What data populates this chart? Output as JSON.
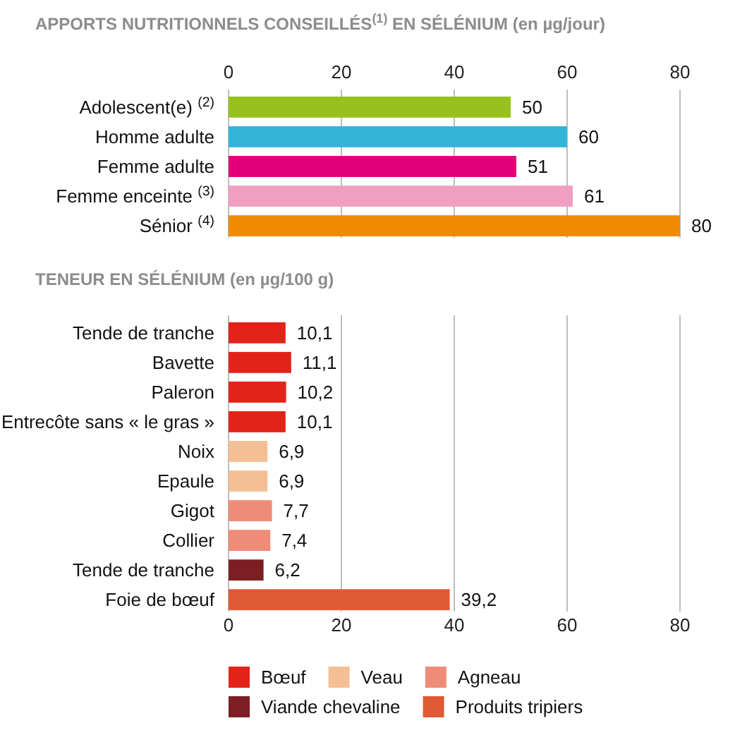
{
  "chart_data": [
    {
      "type": "bar",
      "orientation": "horizontal",
      "title": "APPORTS NUTRITIONNELS CONSEILLÉS$^{(1)}$ EN SÉLÉNIUM (en µg/jour)",
      "categories": [
        "Adolescent(e) $^{(2)}$",
        "Homme adulte",
        "Femme adulte",
        "Femme enceinte $^{(3)}$",
        "Sénior $^{(4)}$"
      ],
      "values": [
        50,
        60,
        51,
        61,
        80
      ],
      "colors": [
        "#96c11f",
        "#33b5d9",
        "#e2007a",
        "#f09fc0",
        "#f08a00"
      ],
      "xlim": [
        0,
        80
      ],
      "xticks": [
        0,
        20,
        40,
        60,
        80
      ],
      "grid": "x",
      "data_labels": true
    },
    {
      "type": "bar",
      "orientation": "horizontal",
      "stacked": true,
      "title": "TENEUR EN SÉLÉNIUM (en µg/100 g)",
      "categories": [
        "Tende de tranche",
        "Bavette",
        "Paleron",
        "Entrecôte sans « le gras »",
        "Noix",
        "Epaule",
        "Gigot",
        "Collier",
        "Tende de tranche",
        "Foie de bœuf"
      ],
      "series": [
        {
          "name": "Bœuf",
          "color": "#e2231a",
          "values": [
            10.1,
            11.1,
            10.2,
            10.1,
            null,
            null,
            null,
            null,
            null,
            null
          ],
          "value_labels": [
            "10,1",
            "11,1",
            "10,2",
            "10,1",
            null,
            null,
            null,
            null,
            null,
            null
          ]
        },
        {
          "name": "Veau",
          "color": "#f5bf95",
          "values": [
            null,
            null,
            null,
            null,
            6.9,
            6.9,
            null,
            null,
            null,
            null
          ],
          "value_labels": [
            null,
            null,
            null,
            null,
            "6,9",
            "6,9",
            null,
            null,
            null,
            null
          ]
        },
        {
          "name": "Agneau",
          "color": "#ef8c78",
          "values": [
            null,
            null,
            null,
            null,
            null,
            null,
            7.7,
            7.4,
            null,
            null
          ],
          "value_labels": [
            null,
            null,
            null,
            null,
            null,
            null,
            "7,7",
            "7,4",
            null,
            null
          ]
        },
        {
          "name": "Viande chevaline",
          "color": "#7b1f24",
          "values": [
            null,
            null,
            null,
            null,
            null,
            null,
            null,
            null,
            6.2,
            null
          ],
          "value_labels": [
            null,
            null,
            null,
            null,
            null,
            null,
            null,
            null,
            "6,2",
            null
          ]
        },
        {
          "name": "Produits tripiers",
          "color": "#e05a33",
          "values": [
            null,
            null,
            null,
            null,
            null,
            null,
            null,
            null,
            null,
            39.2
          ],
          "value_labels": [
            null,
            null,
            null,
            null,
            null,
            null,
            null,
            null,
            null,
            "39,2"
          ]
        }
      ],
      "xlim": [
        0,
        80
      ],
      "xticks": [
        0,
        20,
        40,
        60,
        80
      ],
      "grid": "x",
      "legend": "bottom"
    }
  ]
}
